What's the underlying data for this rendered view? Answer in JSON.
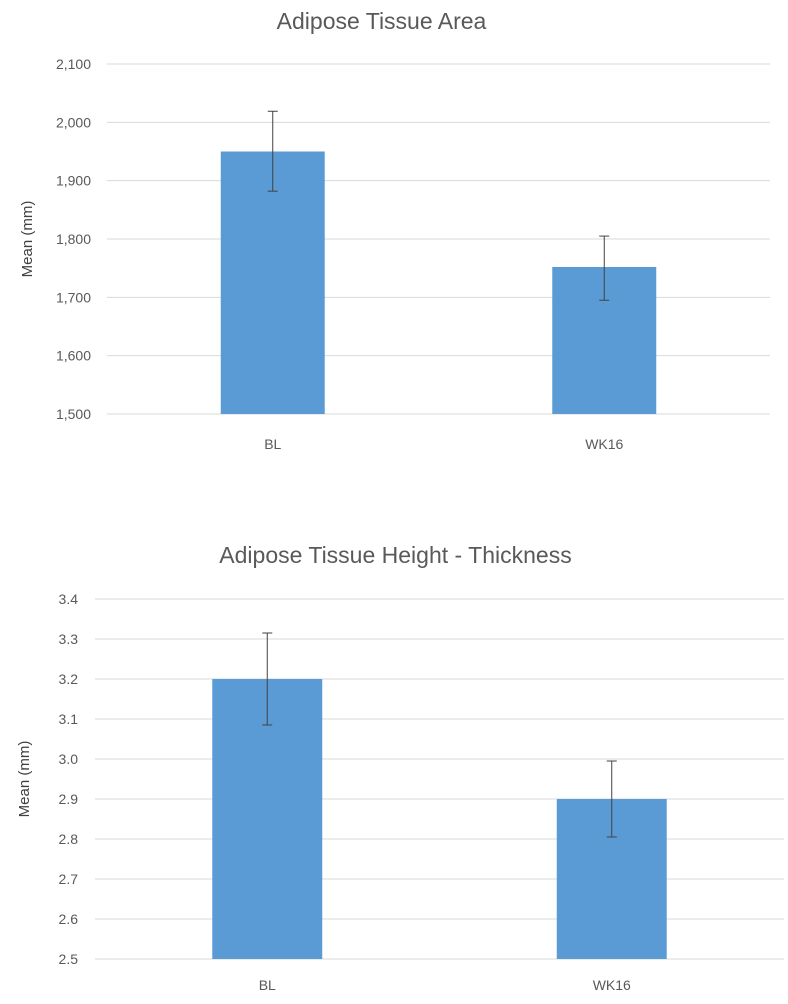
{
  "chart_data": [
    {
      "type": "bar",
      "title": "Adipose Tissue Area",
      "xlabel": "",
      "ylabel": "Mean (mm)",
      "ylim": [
        1500,
        2100
      ],
      "ytick_step": 100,
      "ytick_labels": [
        "1,500",
        "1,600",
        "1,700",
        "1,800",
        "1,900",
        "2,000",
        "2,100"
      ],
      "grid": true,
      "legend": "none",
      "bar_color": "#5b9bd5",
      "categories": [
        "BL",
        "WK16"
      ],
      "values": [
        1950,
        1752
      ],
      "error_low": [
        1882,
        1695
      ],
      "error_high": [
        2019,
        1805
      ]
    },
    {
      "type": "bar",
      "title": "Adipose Tissue Height - Thickness",
      "xlabel": "",
      "ylabel": "Mean (mm)",
      "ylim": [
        2.5,
        3.4
      ],
      "ytick_step": 0.1,
      "ytick_labels": [
        "2.5",
        "2.6",
        "2.7",
        "2.8",
        "2.9",
        "3.0",
        "3.1",
        "3.2",
        "3.3",
        "3.4"
      ],
      "grid": true,
      "legend": "none",
      "bar_color": "#5b9bd5",
      "categories": [
        "BL",
        "WK16"
      ],
      "values": [
        3.2,
        2.9
      ],
      "error_low": [
        3.085,
        2.805
      ],
      "error_high": [
        3.315,
        2.995
      ]
    }
  ]
}
